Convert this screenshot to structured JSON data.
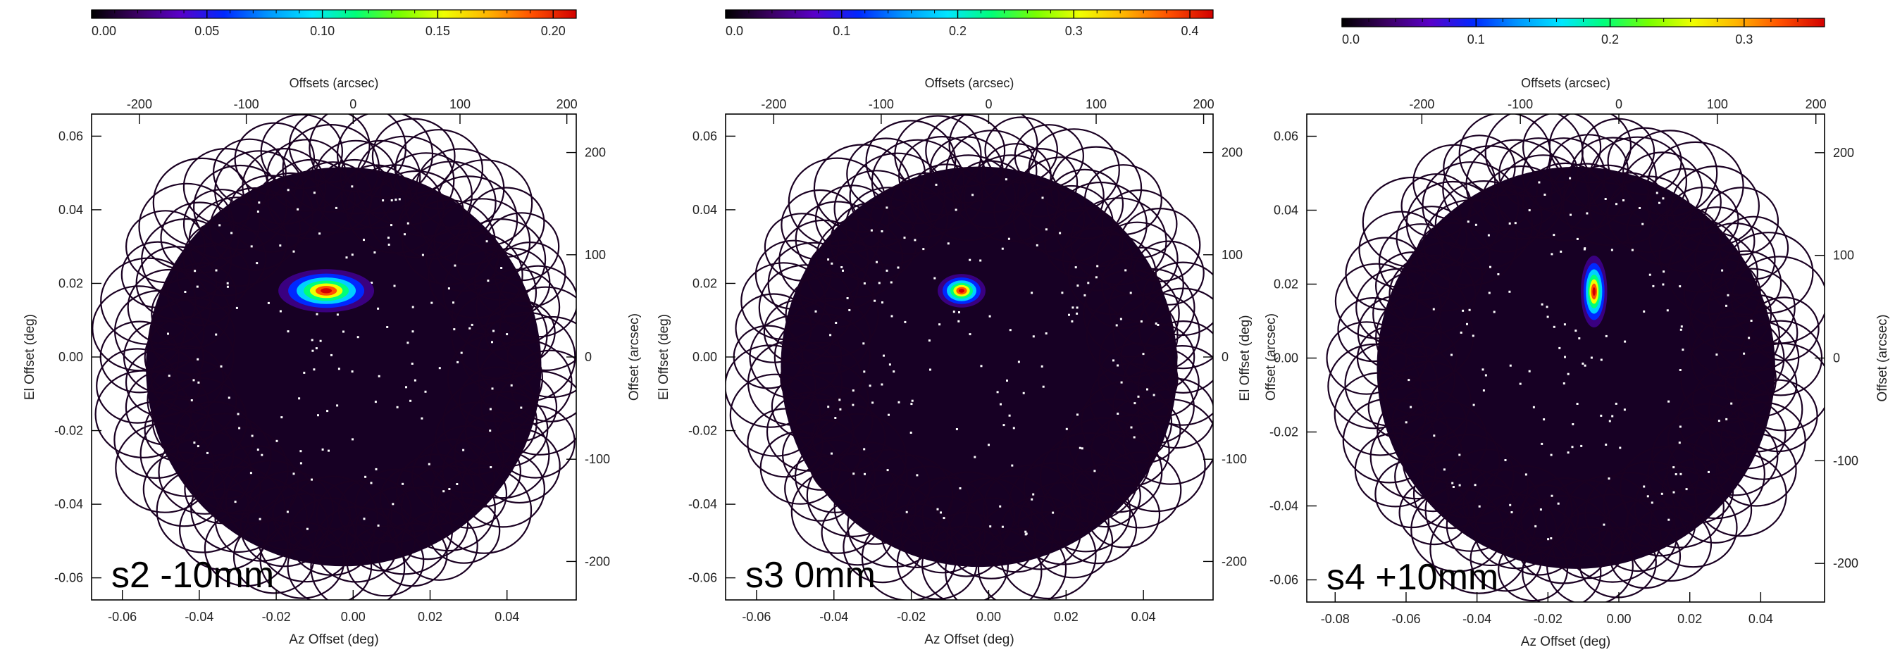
{
  "colormap": [
    "#000000",
    "#3a0060",
    "#5a00c8",
    "#0028ff",
    "#0096ff",
    "#00e6ff",
    "#00ff78",
    "#78ff00",
    "#f0ff00",
    "#ffb400",
    "#ff5000",
    "#d20000"
  ],
  "chart_data": [
    {
      "type": "heatmap",
      "panel_label": "s2 -10mm",
      "colorbar": {
        "range": [
          0,
          0.21
        ],
        "ticks": [
          "0.00",
          "0.05",
          "0.10",
          "0.15",
          "0.20"
        ],
        "tick_values": [
          0,
          0.05,
          0.1,
          0.15,
          0.2
        ]
      },
      "xlabel": "Az Offset (deg)",
      "ylabel": "El Offset (deg)",
      "x2label": "Offsets (arcsec)",
      "y2label": "Offset (arcsec)",
      "xlim": [
        -0.068,
        0.058
      ],
      "ylim": [
        -0.066,
        0.066
      ],
      "x_ticks": [
        "-0.06",
        "-0.04",
        "-0.02",
        "0.00",
        "0.02",
        "0.04"
      ],
      "y_ticks": [
        "-0.06",
        "-0.04",
        "-0.02",
        "0.00",
        "0.02",
        "0.04",
        "0.06"
      ],
      "x2_ticks": [
        "-200",
        "-100",
        "0",
        "100",
        "200"
      ],
      "y2_ticks": [
        "-200",
        "-100",
        "0",
        "100",
        "200"
      ],
      "peak": {
        "x": -0.007,
        "y": 0.018,
        "value": 0.2,
        "shape": "wide"
      }
    },
    {
      "type": "heatmap",
      "panel_label": "s3 0mm",
      "colorbar": {
        "range": [
          0,
          0.42
        ],
        "ticks": [
          "0.0",
          "0.1",
          "0.2",
          "0.3",
          "0.4"
        ],
        "tick_values": [
          0,
          0.1,
          0.2,
          0.3,
          0.4
        ]
      },
      "xlabel": "Az Offset (deg)",
      "ylabel": "El Offset (deg)",
      "x2label": "Offsets (arcsec)",
      "y2label": "Offset (arcsec)",
      "xlim": [
        -0.068,
        0.058
      ],
      "ylim": [
        -0.066,
        0.066
      ],
      "x_ticks": [
        "-0.06",
        "-0.04",
        "-0.02",
        "0.00",
        "0.02",
        "0.04"
      ],
      "y_ticks": [
        "-0.06",
        "-0.04",
        "-0.02",
        "0.00",
        "0.02",
        "0.04",
        "0.06"
      ],
      "x2_ticks": [
        "-200",
        "-100",
        "0",
        "100",
        "200"
      ],
      "y2_ticks": [
        "-200",
        "-100",
        "0",
        "100",
        "200"
      ],
      "peak": {
        "x": -0.007,
        "y": 0.018,
        "value": 0.41,
        "shape": "round"
      }
    },
    {
      "type": "heatmap",
      "panel_label": "s4 +10mm",
      "colorbar": {
        "range": [
          0,
          0.36
        ],
        "ticks": [
          "0.0",
          "0.1",
          "0.2",
          "0.3"
        ],
        "tick_values": [
          0,
          0.1,
          0.2,
          0.3
        ]
      },
      "xlabel": "Az Offset (deg)",
      "ylabel": "El Offset (deg)",
      "x2label": "Offsets (arcsec)",
      "y2label": "Offset (arcsec)",
      "xlim": [
        -0.088,
        0.058
      ],
      "ylim": [
        -0.066,
        0.066
      ],
      "x_ticks": [
        "-0.08",
        "-0.06",
        "-0.04",
        "-0.02",
        "0.00",
        "0.02",
        "0.04"
      ],
      "y_ticks": [
        "-0.06",
        "-0.04",
        "-0.02",
        "0.00",
        "0.02",
        "0.04",
        "0.06"
      ],
      "x2_ticks": [
        "-200",
        "-100",
        "0",
        "100",
        "200"
      ],
      "y2_ticks": [
        "-200",
        "-100",
        "0",
        "100",
        "200"
      ],
      "peak": {
        "x": -0.007,
        "y": 0.018,
        "value": 0.35,
        "shape": "tall"
      }
    }
  ]
}
